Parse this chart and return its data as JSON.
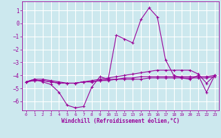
{
  "xlabel": "Windchill (Refroidissement éolien,°C)",
  "background_color": "#cce8ee",
  "grid_color": "#ffffff",
  "line_color": "#990099",
  "x_values": [
    0,
    1,
    2,
    3,
    4,
    5,
    6,
    7,
    8,
    9,
    10,
    11,
    12,
    13,
    14,
    15,
    16,
    17,
    18,
    19,
    20,
    21,
    22,
    23
  ],
  "ylim": [
    -6.7,
    1.7
  ],
  "xlim": [
    -0.5,
    23.5
  ],
  "yticks": [
    1,
    0,
    -1,
    -2,
    -3,
    -4,
    -5,
    -6
  ],
  "xticks": [
    0,
    1,
    2,
    3,
    4,
    5,
    6,
    7,
    8,
    9,
    10,
    11,
    12,
    13,
    14,
    15,
    16,
    17,
    18,
    19,
    20,
    21,
    22,
    23
  ],
  "lines": [
    [
      -4.5,
      -4.3,
      -4.5,
      -4.7,
      -5.3,
      -6.3,
      -6.5,
      -6.4,
      -4.9,
      -4.1,
      -4.3,
      -0.9,
      -1.2,
      -1.5,
      0.3,
      1.2,
      0.5,
      -2.8,
      -4.0,
      -4.2,
      -4.3,
      -4.0,
      -5.3,
      -4.0
    ],
    [
      -4.5,
      -4.4,
      -4.4,
      -4.5,
      -4.6,
      -4.6,
      -4.6,
      -4.5,
      -4.5,
      -4.4,
      -4.4,
      -4.3,
      -4.3,
      -4.3,
      -4.3,
      -4.2,
      -4.2,
      -4.2,
      -4.2,
      -4.2,
      -4.2,
      -4.2,
      -4.2,
      -4.1
    ],
    [
      -4.5,
      -4.4,
      -4.4,
      -4.5,
      -4.6,
      -4.6,
      -4.6,
      -4.5,
      -4.5,
      -4.4,
      -4.3,
      -4.3,
      -4.2,
      -4.2,
      -4.1,
      -4.1,
      -4.1,
      -4.1,
      -4.1,
      -4.1,
      -4.1,
      -4.1,
      -4.1,
      -4.0
    ],
    [
      -4.5,
      -4.3,
      -4.3,
      -4.4,
      -4.5,
      -4.6,
      -4.6,
      -4.5,
      -4.4,
      -4.3,
      -4.2,
      -4.1,
      -4.0,
      -3.9,
      -3.8,
      -3.7,
      -3.6,
      -3.6,
      -3.6,
      -3.6,
      -3.6,
      -3.9,
      -4.6,
      -4.0
    ]
  ]
}
